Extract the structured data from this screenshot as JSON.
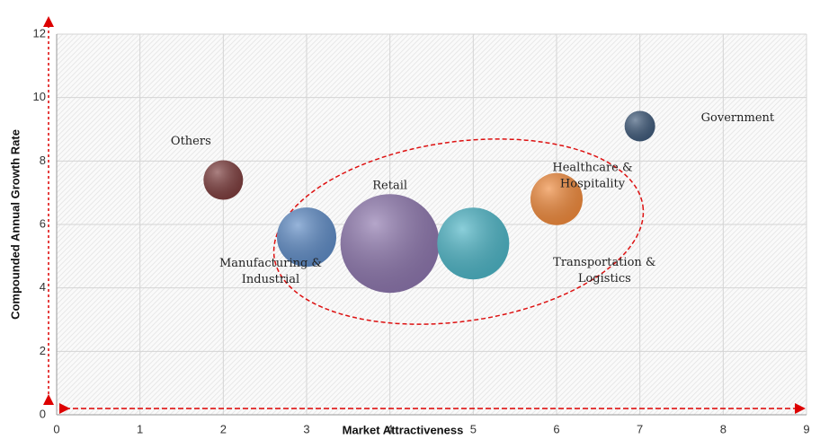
{
  "chart_data": {
    "type": "bubble",
    "xlabel": "Market Attractiveness",
    "ylabel": "Compounded Annual Growth Rate",
    "labels": [
      "Others",
      "Manufacturing & Industrial",
      "Retail",
      "Transportation & Logistics",
      "Healthcare & Hospitality",
      "Government"
    ],
    "x": [
      2,
      3,
      4,
      5,
      6,
      7
    ],
    "values": [
      7.4,
      5.6,
      5.4,
      5.4,
      6.8,
      9.1
    ],
    "sizes": [
      22,
      33,
      55,
      40,
      29,
      17
    ],
    "colors": [
      "#7d3d3d",
      "#5f8cc6",
      "#8d76ad",
      "#4db5c6",
      "#f08a3c",
      "#3f5a7a"
    ],
    "xlim": [
      0,
      9
    ],
    "xticks": [
      0,
      1,
      2,
      3,
      4,
      5,
      6,
      7,
      8,
      9
    ],
    "ylim": [
      0,
      12
    ],
    "yticks": [
      0,
      2,
      4,
      6,
      8,
      10,
      12
    ],
    "grid": true
  }
}
